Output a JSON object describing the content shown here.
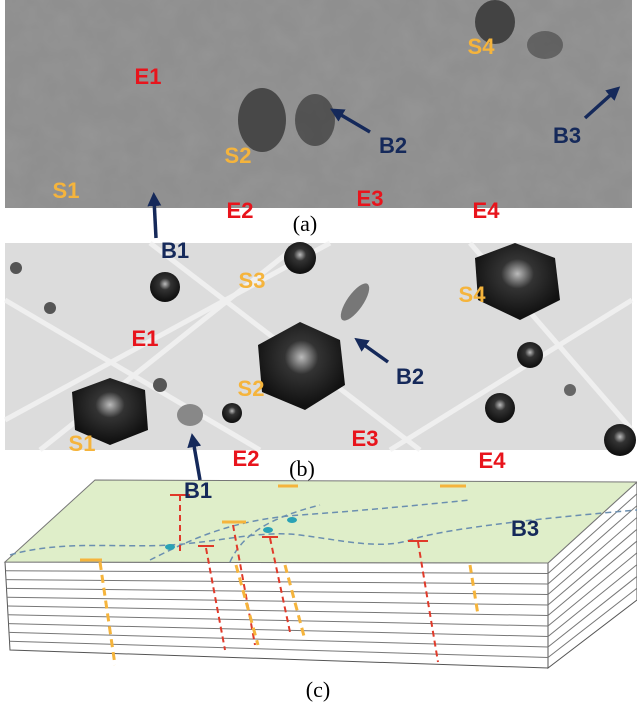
{
  "panels": [
    {
      "caption": "(a)",
      "labels": [
        "E1",
        "S4",
        "S2",
        "B2",
        "B3",
        "S1",
        "E2",
        "E3",
        "E4",
        "B1"
      ]
    },
    {
      "caption": "(b)",
      "labels": [
        "S3",
        "S4",
        "E1",
        "B2",
        "S2",
        "S1",
        "E3",
        "E2",
        "E4",
        "B1"
      ]
    },
    {
      "caption": "(c)",
      "labels": [
        "B3"
      ]
    }
  ]
}
